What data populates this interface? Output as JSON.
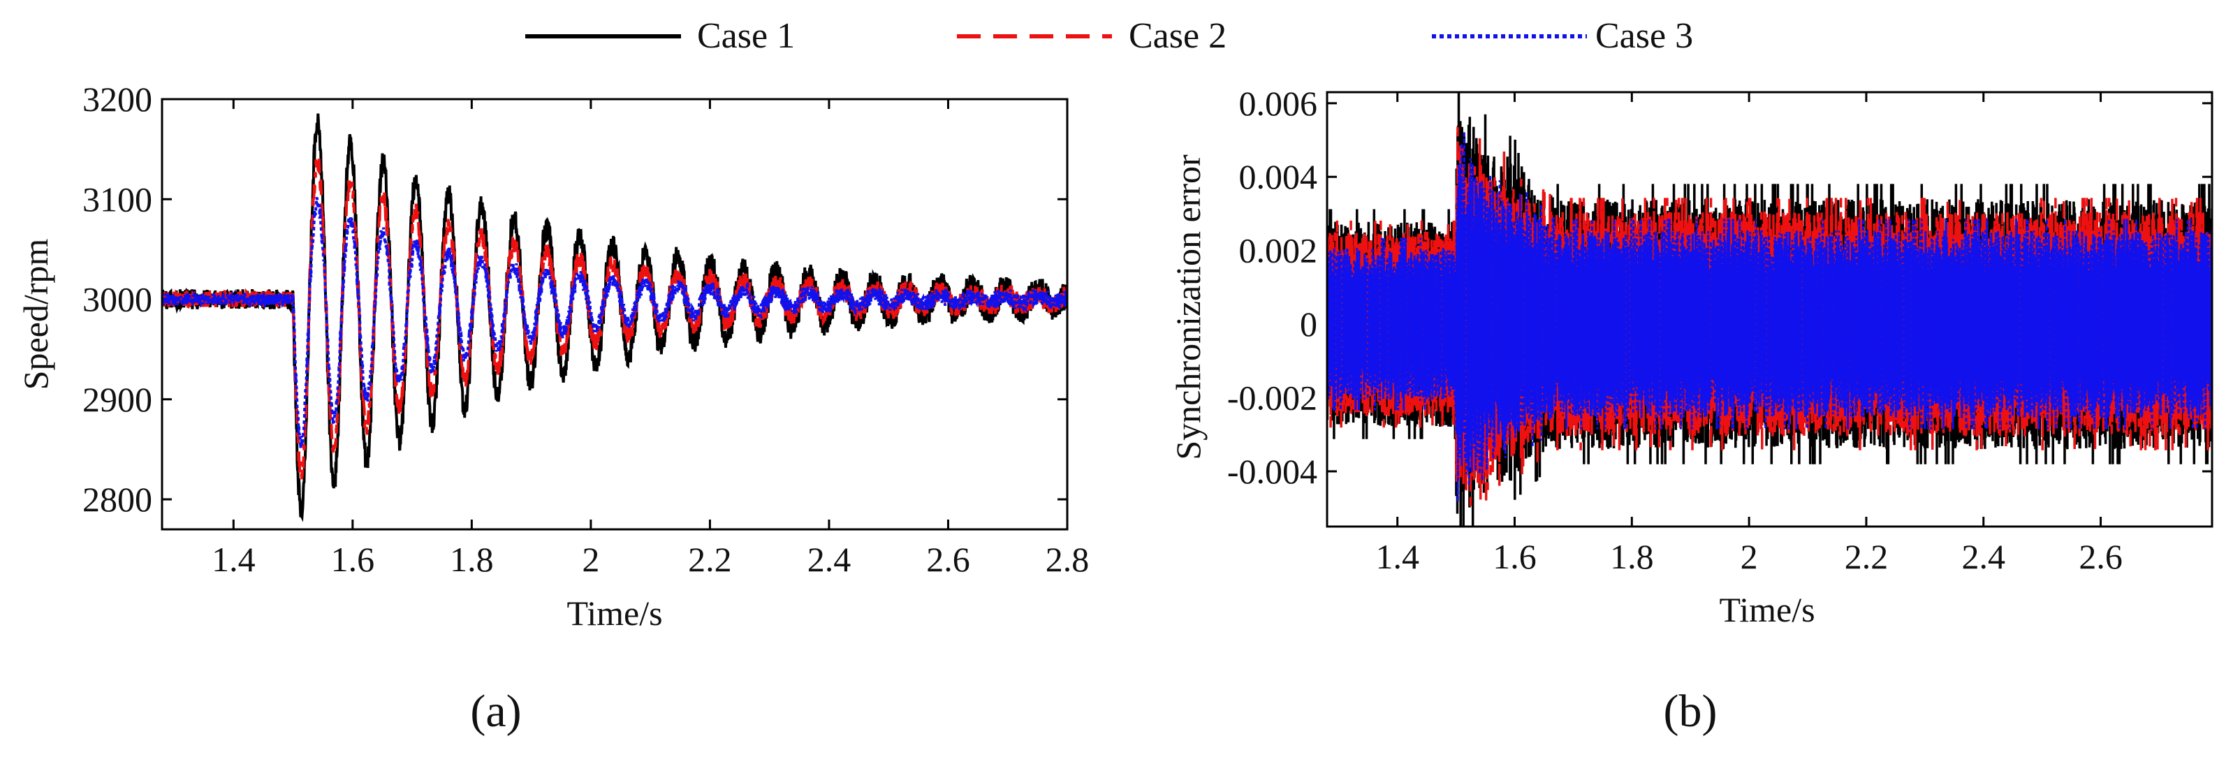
{
  "legend": {
    "entries": [
      {
        "label": "Case 1",
        "color": "#000000",
        "dash": "solid"
      },
      {
        "label": "Case 2",
        "color": "#ee1111",
        "dash": "dashed"
      },
      {
        "label": "Case 3",
        "color": "#1111ee",
        "dash": "dotted"
      }
    ]
  },
  "chart_data": [
    {
      "type": "line",
      "panel_label": "(a)",
      "xlabel": "Time/s",
      "ylabel": "Speed/rpm",
      "xlim": [
        1.28,
        2.8
      ],
      "ylim": [
        2770,
        3200
      ],
      "xticks": [
        1.4,
        1.6,
        1.8,
        2.0,
        2.2,
        2.4,
        2.6,
        2.8
      ],
      "xtick_labels": [
        "1.4",
        "1.6",
        "1.8",
        "2",
        "2.2",
        "2.4",
        "2.6",
        "2.8"
      ],
      "yticks": [
        2800,
        2900,
        3000,
        3100,
        3200
      ],
      "ytick_labels": [
        "2800",
        "2900",
        "3000",
        "3100",
        "3200"
      ],
      "disturbance_time": 1.5,
      "steady_value": 3000,
      "oscillation_period": 0.055,
      "series": [
        {
          "name": "Case 1",
          "color": "#000000",
          "dash": "solid",
          "peak_value": 3197,
          "trough_value": 2783,
          "decay_time_constant": 0.42,
          "ripple": 10
        },
        {
          "name": "Case 2",
          "color": "#ee1111",
          "dash": "dashed",
          "peak_value": 3155,
          "trough_value": 2820,
          "decay_time_constant": 0.36,
          "ripple": 8
        },
        {
          "name": "Case 3",
          "color": "#1111ee",
          "dash": "dotted",
          "peak_value": 3110,
          "trough_value": 2850,
          "decay_time_constant": 0.3,
          "ripple": 6
        }
      ]
    },
    {
      "type": "line",
      "panel_label": "(b)",
      "xlabel": "Time/s",
      "ylabel": "Synchronization error",
      "xlim": [
        1.28,
        2.79
      ],
      "ylim": [
        -0.0055,
        0.0063
      ],
      "xticks": [
        1.4,
        1.6,
        1.8,
        2.0,
        2.2,
        2.4,
        2.6
      ],
      "xtick_labels": [
        "1.4",
        "1.6",
        "1.8",
        "2",
        "2.2",
        "2.4",
        "2.6"
      ],
      "yticks": [
        -0.004,
        -0.002,
        0,
        0.002,
        0.004,
        0.006
      ],
      "ytick_labels": [
        "-0.004",
        "-0.002",
        "0",
        "0.002",
        "0.004",
        "0.006"
      ],
      "disturbance_time": 1.5,
      "series": [
        {
          "name": "Case 1",
          "color": "#000000",
          "dash": "solid",
          "band_upper": 0.004,
          "band_lower": -0.004,
          "peak_value": 0.0063,
          "trough_value": -0.0056
        },
        {
          "name": "Case 2",
          "color": "#ee1111",
          "dash": "dashed",
          "band_upper": 0.0036,
          "band_lower": -0.0036,
          "peak_value": 0.0053,
          "trough_value": -0.005
        },
        {
          "name": "Case 3",
          "color": "#1111ee",
          "dash": "dotted",
          "band_upper": 0.003,
          "band_lower": -0.003,
          "peak_value": 0.005,
          "trough_value": -0.0045
        }
      ]
    }
  ]
}
